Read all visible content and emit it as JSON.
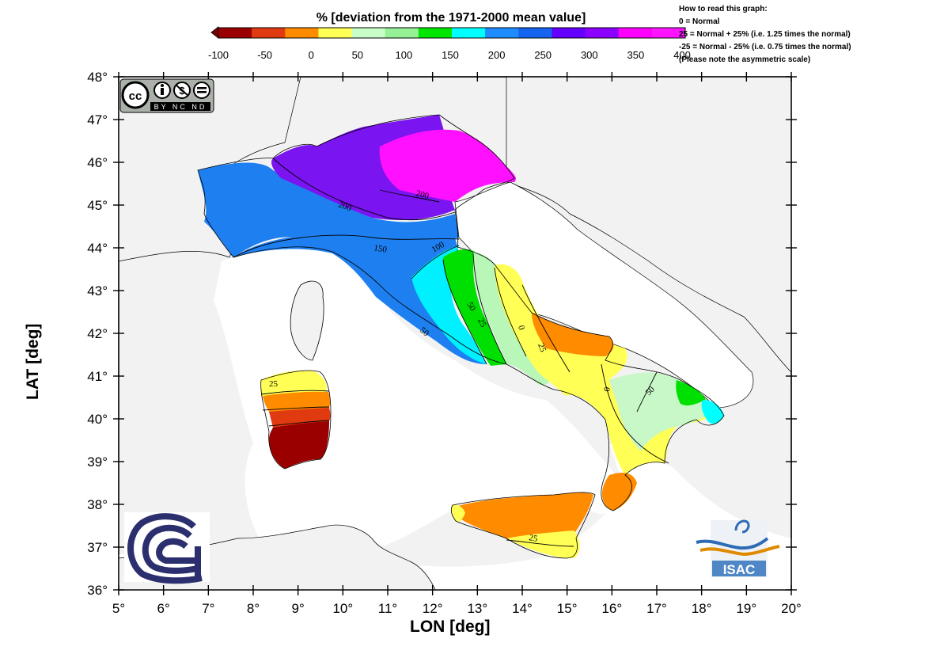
{
  "colorbar": {
    "title": "% [deviation from the 1971-2000 mean value]",
    "colors": [
      "#9b0000",
      "#e03a10",
      "#ff8c00",
      "#ffff55",
      "#c8ffc8",
      "#96f096",
      "#00e600",
      "#00ffff",
      "#1e8cff",
      "#1464f0",
      "#6400ff",
      "#8c00ff",
      "#ff00ff",
      "#ff14ff"
    ],
    "ticks": [
      "-100",
      "-50",
      "0",
      "50",
      "100",
      "150",
      "200",
      "250",
      "300",
      "350",
      "400"
    ]
  },
  "notes": [
    "How to read this graph:",
    "0 = Normal",
    "25 = Normal + 25% (i.e. 1.25 times the normal)",
    "-25 = Normal - 25% (i.e. 0.75 times the normal)",
    "(Please note the asymmetric scale)"
  ],
  "map": {
    "lat_ticks": [
      "48°",
      "47°",
      "46°",
      "45°",
      "44°",
      "43°",
      "42°",
      "41°",
      "40°",
      "39°",
      "38°",
      "37°",
      "36°"
    ],
    "lon_ticks": [
      "5°",
      "6°",
      "7°",
      "8°",
      "9°",
      "10°",
      "11°",
      "12°",
      "13°",
      "14°",
      "15°",
      "16°",
      "17°",
      "18°",
      "19°",
      "20°"
    ],
    "lat_range": [
      36,
      48
    ],
    "lon_range": [
      5,
      20
    ],
    "xlabel": "LON [deg]",
    "ylabel": "LAT [deg]",
    "contour_labels": [
      "200",
      "200",
      "150",
      "100",
      "50",
      "25",
      "0",
      "25",
      "0",
      "50",
      "25",
      "25",
      "50"
    ]
  },
  "logos": {
    "license_badge": {
      "text": "BY NC ND",
      "cc": "cc"
    },
    "institute": "ISAC"
  }
}
